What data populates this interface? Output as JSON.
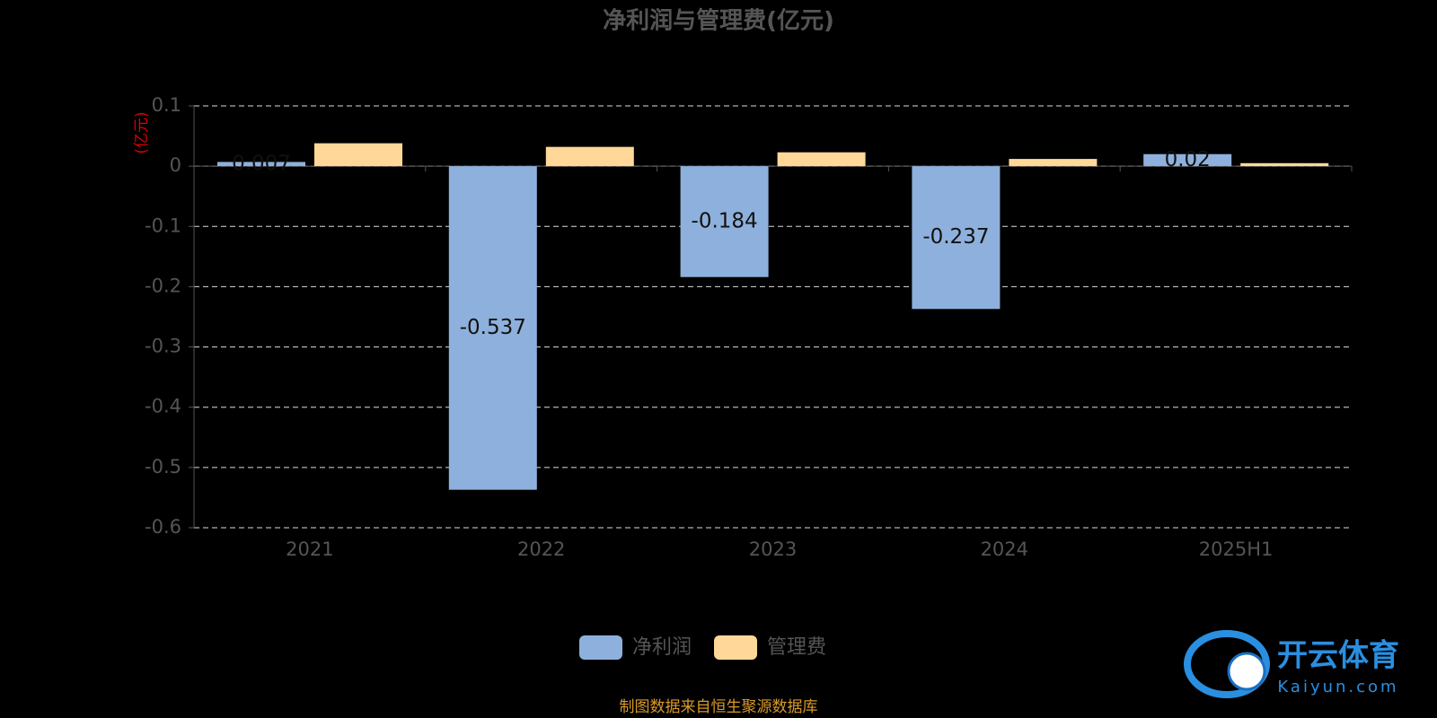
{
  "chart_data": {
    "type": "bar",
    "title": "净利润与管理费(亿元)",
    "y_label": "(亿元)",
    "categories": [
      "2021",
      "2022",
      "2023",
      "2024",
      "2025H1"
    ],
    "series": [
      {
        "name": "净利润",
        "color": "#8eb0dc",
        "values": [
          0.007,
          -0.537,
          -0.184,
          -0.237,
          0.02
        ]
      },
      {
        "name": "管理费",
        "color": "#ffd899",
        "values": [
          0.038,
          0.032,
          0.023,
          0.012,
          0.005
        ]
      }
    ],
    "ylim": [
      -0.6,
      0.1
    ],
    "yticks": [
      0.1,
      0,
      -0.1,
      -0.2,
      -0.3,
      -0.4,
      -0.5,
      -0.6
    ],
    "grid": true,
    "source": "制图数据来自恒生聚源数据库",
    "watermark": {
      "name": "开云体育",
      "site": "Kaiyun.com"
    }
  }
}
